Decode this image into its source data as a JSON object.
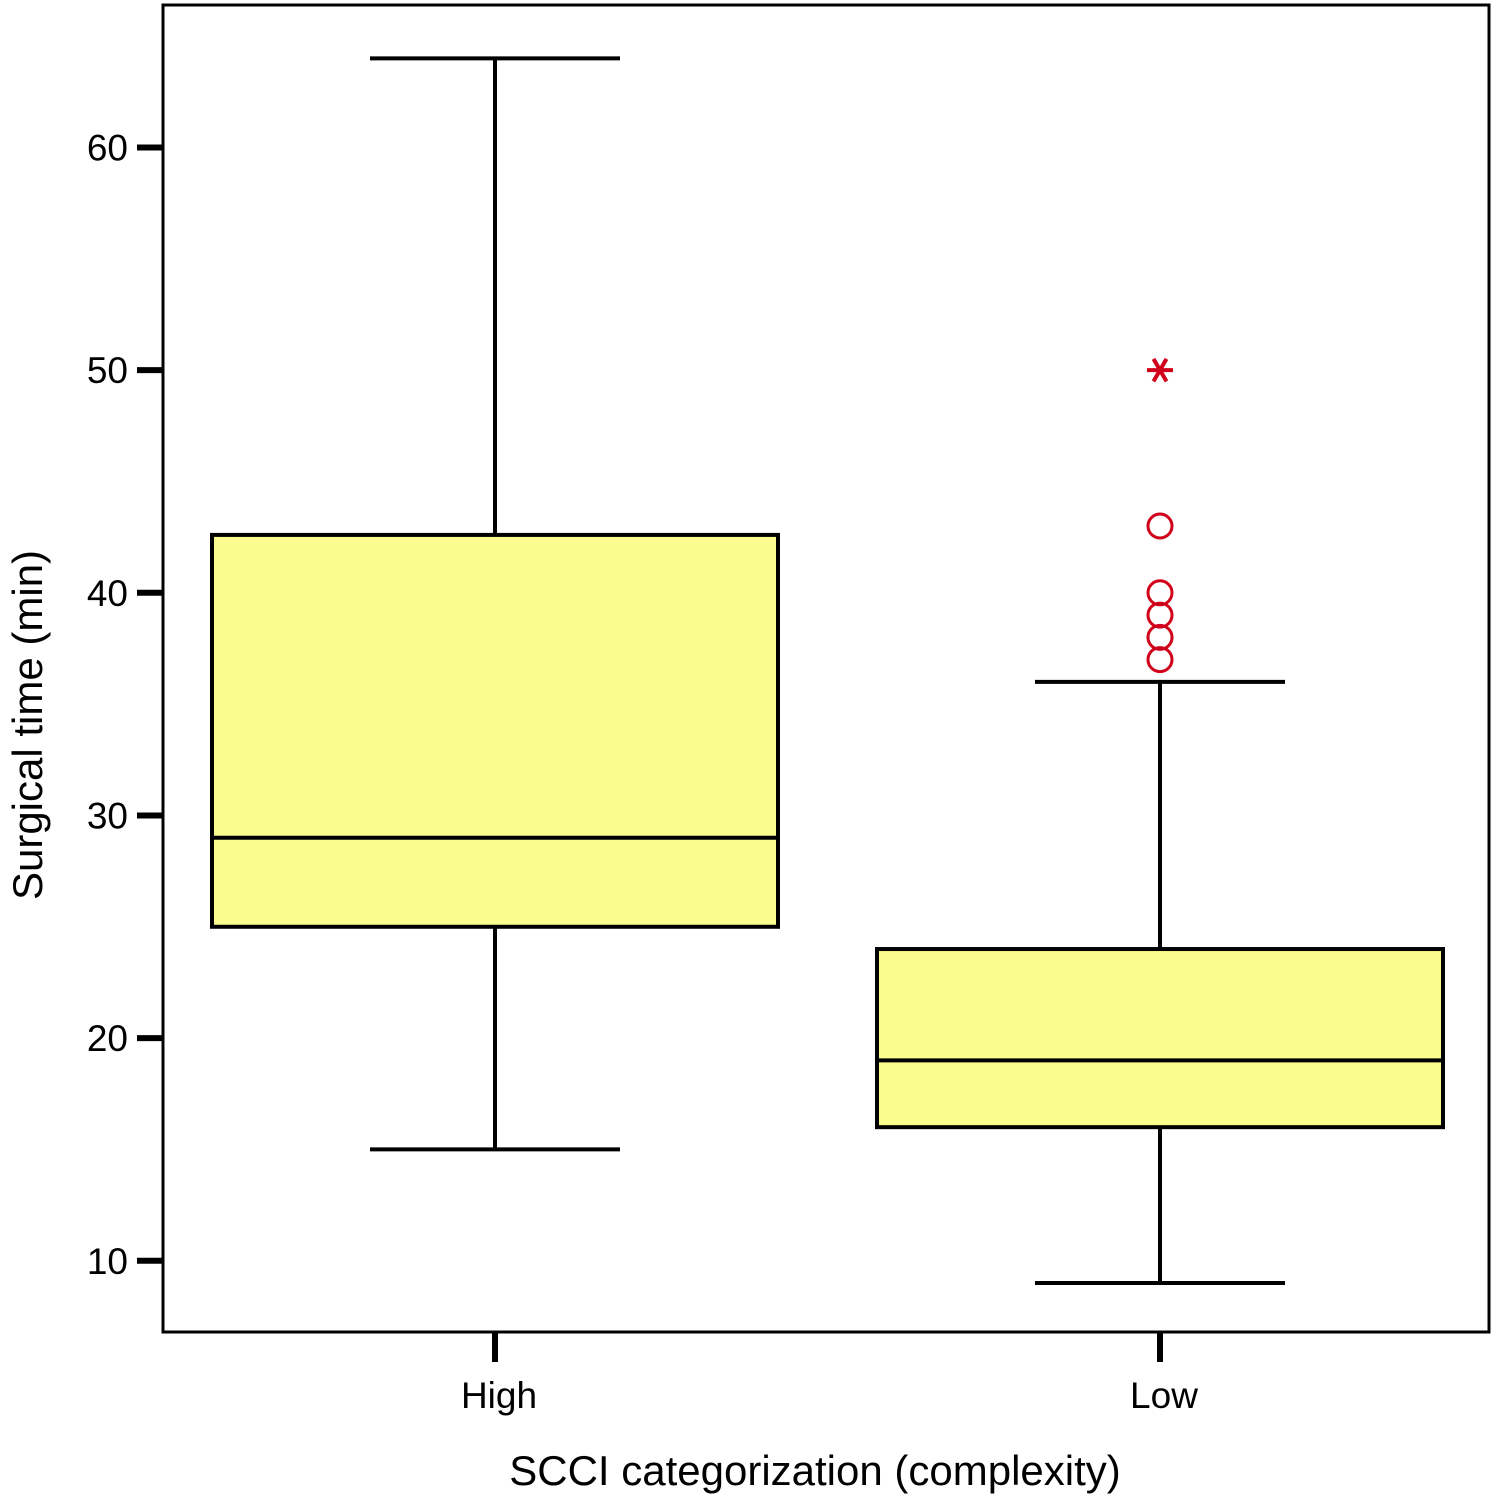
{
  "chart_data": {
    "type": "box",
    "xlabel": "SCCI categorization (complexity)",
    "ylabel": "Surgical time (min)",
    "categories": [
      "High",
      "Low"
    ],
    "yticks": [
      10,
      20,
      30,
      40,
      50,
      60
    ],
    "ylim": [
      6.8,
      66.4
    ],
    "grid": false,
    "box_fill": "#FAFD8D",
    "outlier_color": "#D0021B",
    "boxes": [
      {
        "category": "High",
        "whisker_low": 15,
        "q1": 25,
        "median": 29,
        "q3": 42.6,
        "whisker_high": 64,
        "outliers": [],
        "extremes": []
      },
      {
        "category": "Low",
        "whisker_low": 9,
        "q1": 16,
        "median": 19,
        "q3": 24,
        "whisker_high": 36,
        "outliers": [
          37,
          38,
          39,
          40,
          43
        ],
        "extremes": [
          50
        ]
      }
    ]
  }
}
